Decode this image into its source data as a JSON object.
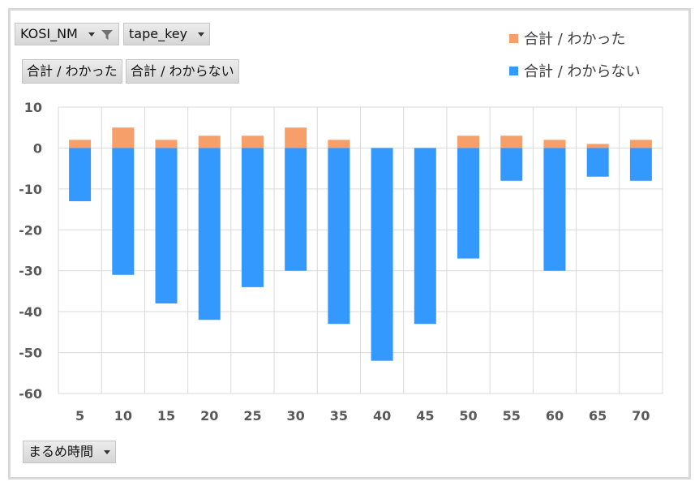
{
  "fields": {
    "filter_field": "KOSI_NM",
    "legend_field": "tape_key",
    "axis_field": "まるめ時間"
  },
  "value_buttons": [
    "合計 / わかった",
    "合計 / わからない"
  ],
  "icons": {
    "filter": "filter-icon",
    "dropdown": "chevron-down-icon"
  },
  "colors": {
    "series1": "#f79f6a",
    "series2": "#3399ff"
  },
  "chart_data": {
    "type": "bar",
    "stacked": true,
    "categories": [
      "5",
      "10",
      "15",
      "20",
      "25",
      "30",
      "35",
      "40",
      "45",
      "50",
      "55",
      "60",
      "65",
      "70"
    ],
    "series": [
      {
        "name": "合計 / わかった",
        "values": [
          2,
          5,
          2,
          3,
          3,
          5,
          2,
          0,
          0,
          3,
          3,
          2,
          1,
          2
        ]
      },
      {
        "name": "合計 / わからない",
        "values": [
          -13,
          -31,
          -38,
          -42,
          -34,
          -30,
          -43,
          -52,
          -43,
          -27,
          -8,
          -30,
          -7,
          -8
        ]
      }
    ],
    "ylim": [
      -60,
      10
    ],
    "yticks": [
      "10",
      "0",
      "-10",
      "-20",
      "-30",
      "-40",
      "-50",
      "-60"
    ],
    "grid": true,
    "legend_position": "top-right"
  }
}
